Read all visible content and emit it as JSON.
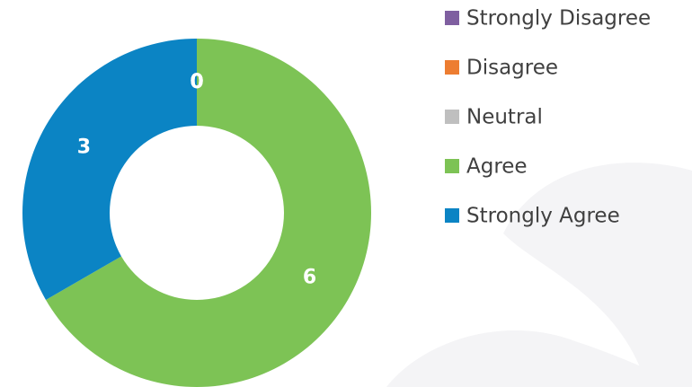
{
  "chart_data": {
    "type": "donut",
    "categories": [
      "Strongly Disagree",
      "Disagree",
      "Neutral",
      "Agree",
      "Strongly Agree"
    ],
    "values": [
      0,
      0,
      0,
      6,
      3
    ],
    "colors": [
      "#7f5fa0",
      "#ed7d31",
      "#bfbfbf",
      "#7dc355",
      "#0b84c4"
    ],
    "legend": "right"
  }
}
